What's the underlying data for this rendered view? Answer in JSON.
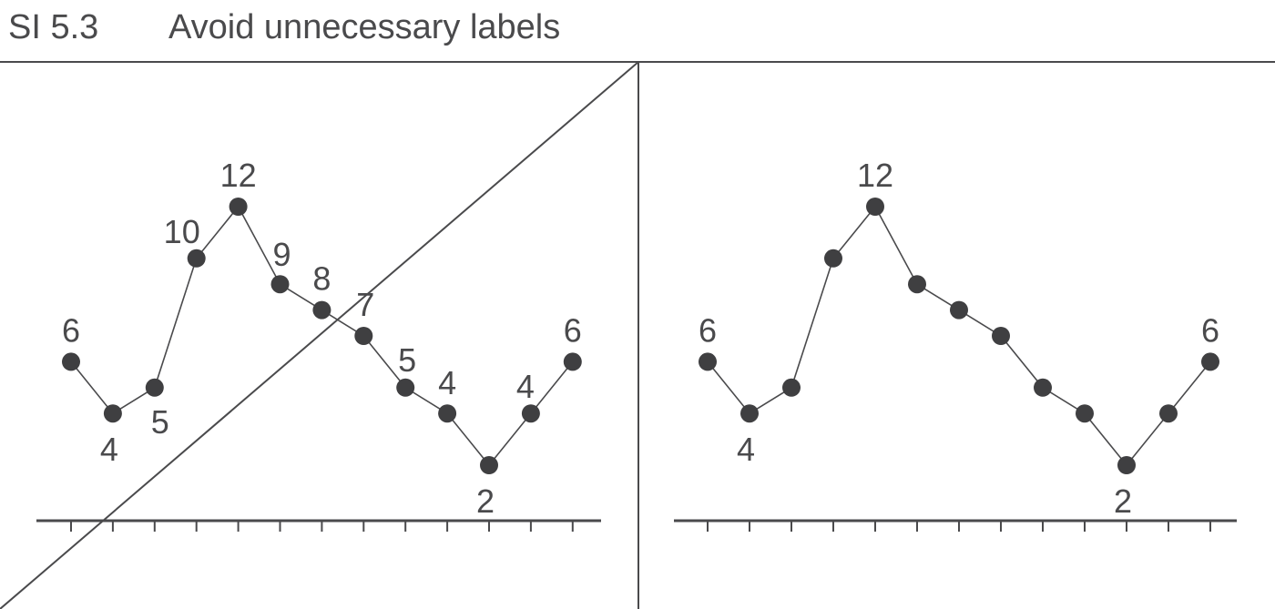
{
  "header": {
    "number": "SI 5.3",
    "title": "Avoid unnecessary labels"
  },
  "colors": {
    "ink": "#4a4a4c",
    "marker": "#3f3f41"
  },
  "chart_data": [
    {
      "type": "line",
      "panel": "left",
      "crossed_out": true,
      "x": [
        1,
        2,
        3,
        4,
        5,
        6,
        7,
        8,
        9,
        10,
        11,
        12,
        13
      ],
      "values": [
        6,
        4,
        5,
        10,
        12,
        9,
        8,
        7,
        5,
        4,
        2,
        4,
        6
      ],
      "point_labels": [
        "6",
        "4",
        "5",
        "10",
        "12",
        "9",
        "8",
        "7",
        "5",
        "4",
        "2",
        "4",
        "6"
      ],
      "grid": false,
      "legend": "none"
    },
    {
      "type": "line",
      "panel": "right",
      "crossed_out": false,
      "x": [
        1,
        2,
        3,
        4,
        5,
        6,
        7,
        8,
        9,
        10,
        11,
        12,
        13
      ],
      "values": [
        6,
        4,
        5,
        10,
        12,
        9,
        8,
        7,
        5,
        4,
        2,
        4,
        6
      ],
      "point_labels": [
        "6",
        "4",
        "",
        "",
        "12",
        "",
        "",
        "",
        "",
        "",
        "2",
        "",
        "6"
      ],
      "grid": false,
      "legend": "none"
    }
  ]
}
